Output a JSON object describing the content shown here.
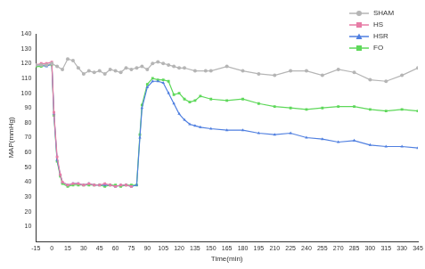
{
  "chart_data": {
    "type": "line",
    "x_label": "Time(min)",
    "y_label": "MAP(mmHg)",
    "xlim": [
      -15,
      345
    ],
    "xticks": [
      -15,
      0,
      15,
      30,
      45,
      60,
      75,
      90,
      105,
      120,
      135,
      150,
      165,
      180,
      195,
      210,
      225,
      240,
      255,
      270,
      285,
      300,
      315,
      330,
      345
    ],
    "ylim": [
      0,
      140
    ],
    "yticks": [
      10,
      20,
      30,
      40,
      50,
      60,
      70,
      80,
      90,
      100,
      110,
      120,
      130,
      140
    ],
    "grid": false,
    "legend": "top-right",
    "series": [
      {
        "name": "SHAM",
        "color": "#b5b5b5",
        "marker": "circle",
        "x": [
          -15,
          -10,
          -5,
          0,
          5,
          10,
          15,
          20,
          25,
          30,
          35,
          40,
          45,
          50,
          55,
          60,
          65,
          70,
          75,
          80,
          85,
          90,
          95,
          100,
          105,
          110,
          115,
          120,
          125,
          135,
          145,
          150,
          165,
          180,
          195,
          210,
          225,
          240,
          255,
          270,
          285,
          300,
          315,
          330,
          345
        ],
        "values": [
          119,
          119,
          119,
          120,
          118,
          116,
          123,
          122,
          117,
          113,
          115,
          114,
          115,
          113,
          116,
          115,
          114,
          117,
          116,
          117,
          118,
          116,
          120,
          121,
          120,
          119,
          118,
          117,
          117,
          115,
          115,
          115,
          118,
          115,
          113,
          112,
          115,
          115,
          112,
          116,
          114,
          109,
          108,
          112,
          117
        ]
      },
      {
        "name": "HS",
        "color": "#e77ca6",
        "marker": "square",
        "x": [
          -15,
          -10,
          -5,
          0,
          2,
          5,
          8,
          10,
          15,
          20,
          25,
          30,
          35,
          40,
          45,
          50,
          55,
          60,
          65,
          70,
          75
        ],
        "values": [
          119,
          120,
          120,
          121,
          87,
          57,
          45,
          40,
          38,
          39,
          39,
          38,
          39,
          38,
          38,
          39,
          38,
          37,
          38,
          38,
          37
        ]
      },
      {
        "name": "HSR",
        "color": "#4f7fe0",
        "marker": "triangle",
        "x": [
          -15,
          -10,
          -5,
          0,
          2,
          5,
          8,
          10,
          15,
          20,
          25,
          30,
          35,
          40,
          45,
          50,
          55,
          60,
          65,
          70,
          75,
          80,
          83,
          85,
          90,
          95,
          100,
          105,
          110,
          115,
          120,
          125,
          130,
          135,
          140,
          150,
          165,
          180,
          195,
          210,
          225,
          240,
          255,
          270,
          285,
          300,
          315,
          330,
          345
        ],
        "values": [
          119,
          119,
          118,
          120,
          86,
          55,
          45,
          40,
          38,
          39,
          39,
          38,
          39,
          38,
          38,
          38,
          38,
          37,
          38,
          38,
          37,
          38,
          70,
          90,
          104,
          108,
          108,
          107,
          100,
          93,
          86,
          82,
          79,
          78,
          77,
          76,
          75,
          75,
          73,
          72,
          73,
          70,
          69,
          67,
          68,
          65,
          64,
          64,
          63
        ]
      },
      {
        "name": "FO",
        "color": "#5ed85a",
        "marker": "square",
        "x": [
          -15,
          -10,
          -5,
          0,
          2,
          5,
          8,
          10,
          15,
          20,
          25,
          30,
          35,
          40,
          45,
          50,
          55,
          60,
          65,
          70,
          75,
          80,
          83,
          85,
          90,
          95,
          100,
          105,
          110,
          115,
          120,
          125,
          130,
          135,
          140,
          150,
          165,
          180,
          195,
          210,
          225,
          240,
          255,
          270,
          285,
          300,
          315,
          330,
          345
        ],
        "values": [
          118,
          118,
          119,
          119,
          85,
          54,
          44,
          39,
          37,
          38,
          38,
          38,
          38,
          38,
          38,
          37,
          38,
          38,
          37,
          38,
          38,
          38,
          72,
          92,
          106,
          110,
          109,
          109,
          108,
          99,
          100,
          96,
          94,
          95,
          98,
          96,
          95,
          96,
          93,
          91,
          90,
          89,
          90,
          91,
          91,
          89,
          88,
          89,
          88
        ]
      }
    ]
  }
}
